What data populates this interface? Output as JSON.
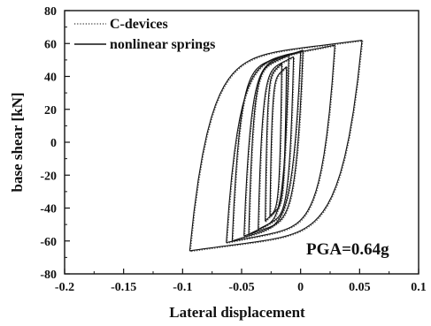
{
  "chart_data": {
    "type": "line",
    "title": "",
    "xlabel": "Lateral displacement",
    "ylabel": "base shear  [kN]",
    "xlim": [
      -0.2,
      0.1
    ],
    "ylim": [
      -80,
      80
    ],
    "x_ticks": [
      "-0.2",
      "-0.15",
      "-0.1",
      "-0.05",
      "0",
      "0.05",
      "0.1"
    ],
    "y_ticks": [
      "80",
      "60",
      "40",
      "20",
      "0",
      "-20",
      "-40",
      "-60",
      "-80"
    ],
    "grid": false,
    "legend_position": "top-left",
    "annotation": "PGA=0.64g",
    "series": [
      {
        "name": "C-devices",
        "style": "dotted",
        "loops": [
          {
            "x_min": -0.094,
            "x_max": 0.052,
            "y_min": -66,
            "y_max": 62
          },
          {
            "x_min": -0.063,
            "x_max": 0.029,
            "y_min": -61,
            "y_max": 59
          },
          {
            "x_min": -0.058,
            "x_max": 0.0,
            "y_min": -60,
            "y_max": 55
          },
          {
            "x_min": -0.048,
            "x_max": 0.002,
            "y_min": -57,
            "y_max": 56
          },
          {
            "x_min": -0.044,
            "x_max": -0.01,
            "y_min": -56,
            "y_max": 53
          },
          {
            "x_min": -0.036,
            "x_max": -0.006,
            "y_min": -53,
            "y_max": 52
          },
          {
            "x_min": -0.03,
            "x_max": -0.016,
            "y_min": -48,
            "y_max": 48
          },
          {
            "x_min": -0.026,
            "x_max": -0.012,
            "y_min": -45,
            "y_max": 46
          }
        ]
      },
      {
        "name": "nonlinear springs",
        "style": "solid",
        "loops": [
          {
            "x_min": -0.094,
            "x_max": 0.052,
            "y_min": -66,
            "y_max": 62
          },
          {
            "x_min": -0.063,
            "x_max": 0.029,
            "y_min": -61,
            "y_max": 59
          },
          {
            "x_min": -0.058,
            "x_max": 0.0,
            "y_min": -60,
            "y_max": 55
          },
          {
            "x_min": -0.048,
            "x_max": 0.002,
            "y_min": -57,
            "y_max": 56
          },
          {
            "x_min": -0.044,
            "x_max": -0.01,
            "y_min": -56,
            "y_max": 53
          },
          {
            "x_min": -0.036,
            "x_max": -0.006,
            "y_min": -53,
            "y_max": 52
          },
          {
            "x_min": -0.03,
            "x_max": -0.016,
            "y_min": -48,
            "y_max": 48
          },
          {
            "x_min": -0.026,
            "x_max": -0.012,
            "y_min": -45,
            "y_max": 46
          }
        ]
      }
    ]
  }
}
